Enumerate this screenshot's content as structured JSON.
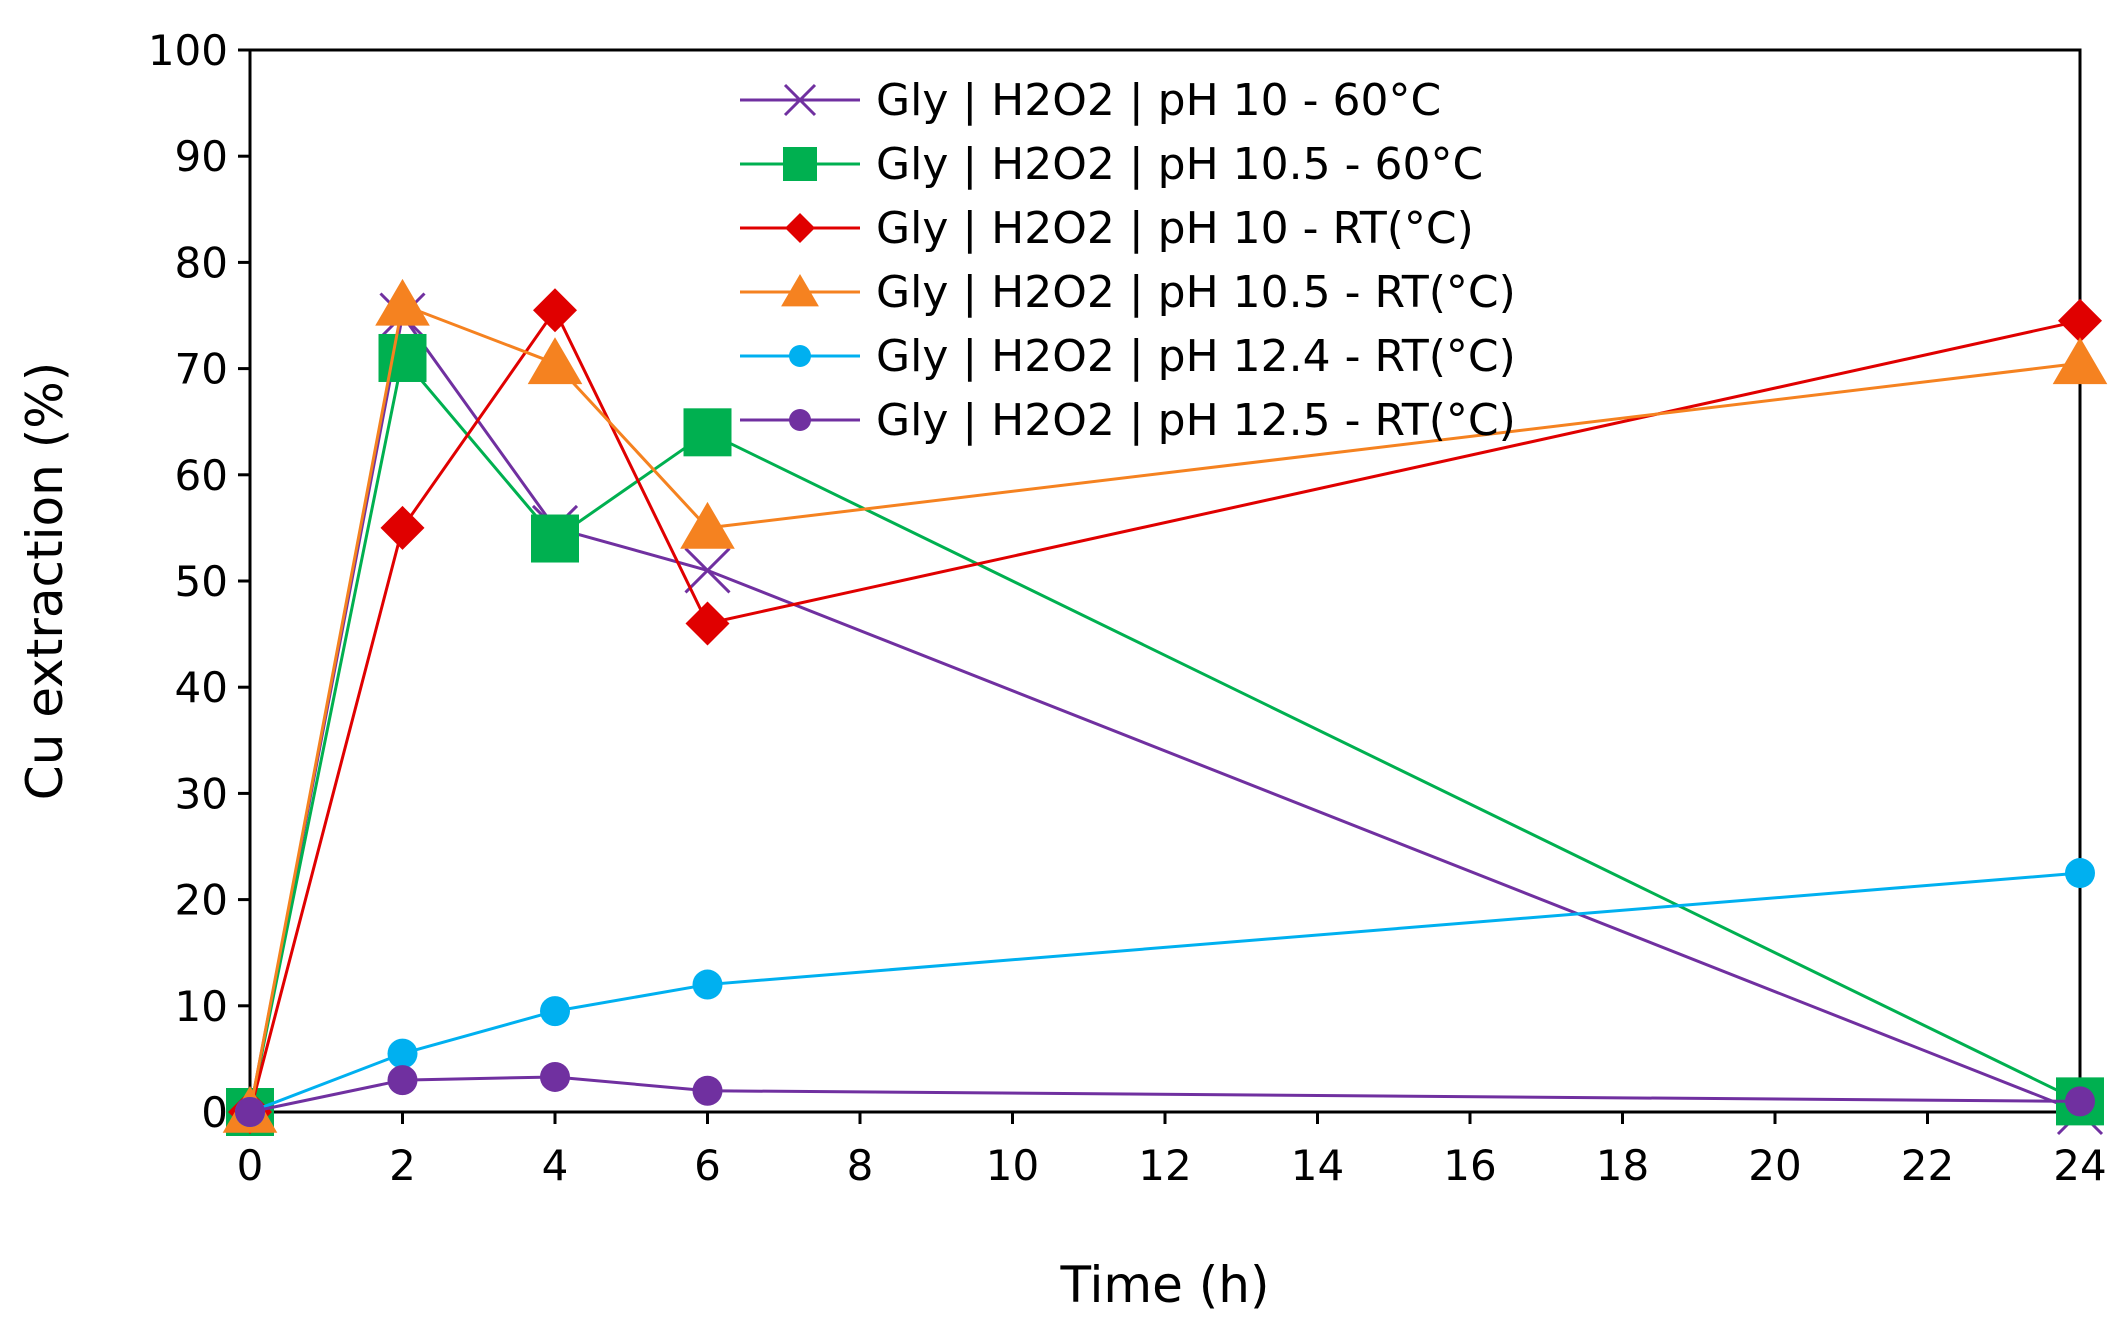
{
  "chart_data": {
    "type": "line",
    "title": "",
    "xlabel": "Time (h)",
    "ylabel": "Cu extraction (%)",
    "xlim": [
      0,
      24
    ],
    "ylim": [
      0,
      100
    ],
    "xticks": [
      0,
      2,
      4,
      6,
      8,
      10,
      12,
      14,
      16,
      18,
      20,
      22,
      24
    ],
    "yticks": [
      0,
      10,
      20,
      30,
      40,
      50,
      60,
      70,
      80,
      90,
      100
    ],
    "grid": false,
    "legend_position": "top-center",
    "series": [
      {
        "name": "Gly | H2O2 | pH 10 - 60°C",
        "color": "#7030A0",
        "marker": "x",
        "x": [
          0,
          2,
          4,
          6,
          24
        ],
        "y": [
          0,
          75,
          55,
          51,
          0
        ]
      },
      {
        "name": "Gly | H2O2 | pH 10.5 - 60°C",
        "color": "#00B050",
        "marker": "square",
        "x": [
          0,
          2,
          4,
          6,
          24
        ],
        "y": [
          0,
          71,
          54,
          64,
          1
        ]
      },
      {
        "name": "Gly | H2O2 | pH 10 - RT(°C)",
        "color": "#E00000",
        "marker": "diamond",
        "x": [
          0,
          2,
          4,
          6,
          24
        ],
        "y": [
          0,
          55,
          75.5,
          46,
          74.5
        ]
      },
      {
        "name": "Gly | H2O2 | pH 10.5 - RT(°C)",
        "color": "#F58220",
        "marker": "triangle",
        "x": [
          0,
          2,
          4,
          6,
          24
        ],
        "y": [
          0,
          76,
          70.5,
          55,
          70.5
        ]
      },
      {
        "name": "Gly | H2O2 | pH 12.4 - RT(°C)",
        "color": "#00B0F0",
        "marker": "circle",
        "x": [
          0,
          2,
          4,
          6,
          24
        ],
        "y": [
          0,
          5.5,
          9.5,
          12,
          22.5
        ]
      },
      {
        "name": "Gly | H2O2 | pH 12.5 - RT(°C)",
        "color": "#7030A0",
        "marker": "circle",
        "x": [
          0,
          2,
          4,
          6,
          24
        ],
        "y": [
          0,
          3,
          3.3,
          2,
          1
        ]
      }
    ]
  }
}
